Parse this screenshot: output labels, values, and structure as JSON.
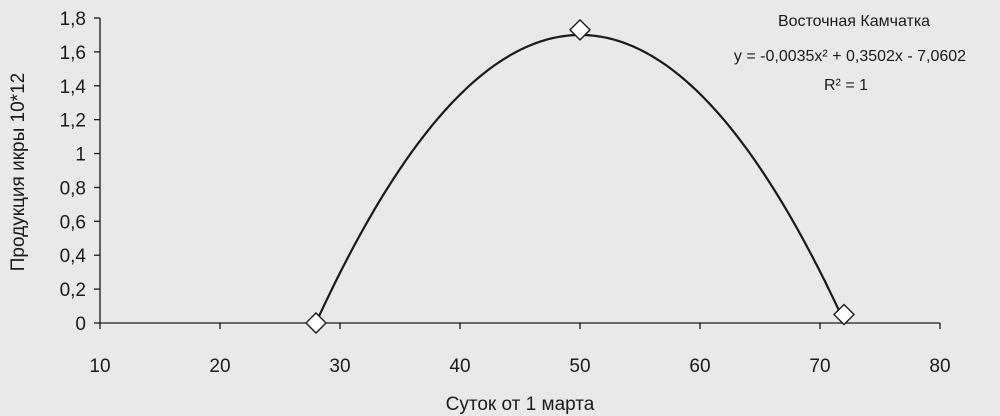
{
  "chart_data": {
    "type": "scatter",
    "xlabel": "Суток от 1 марта",
    "ylabel": "Продукция икры 10*12",
    "xlim": [
      10,
      80
    ],
    "ylim": [
      0,
      1.8
    ],
    "x_ticks": [
      "10",
      "20",
      "30",
      "40",
      "50",
      "60",
      "70",
      "80"
    ],
    "y_ticks": [
      "0",
      "0,2",
      "0,4",
      "0,6",
      "0,8",
      "1",
      "1,2",
      "1,4",
      "1,6",
      "1,8"
    ],
    "grid": false,
    "series": [
      {
        "name": "Восточная Камчатка",
        "x": [
          28,
          50,
          72
        ],
        "y": [
          0,
          1.73,
          0.05
        ]
      }
    ],
    "trendline": {
      "a": -0.0035,
      "b": 0.3502,
      "c": -7.0602,
      "equation": "y = -0,0035x² + 0,3502x - 7,0602",
      "r2": "R² = 1"
    },
    "line_color": "#1a1a1a",
    "marker_fill": "#ffffff",
    "marker_stroke": "#1a1a1a",
    "marker_shape": "diamond"
  }
}
